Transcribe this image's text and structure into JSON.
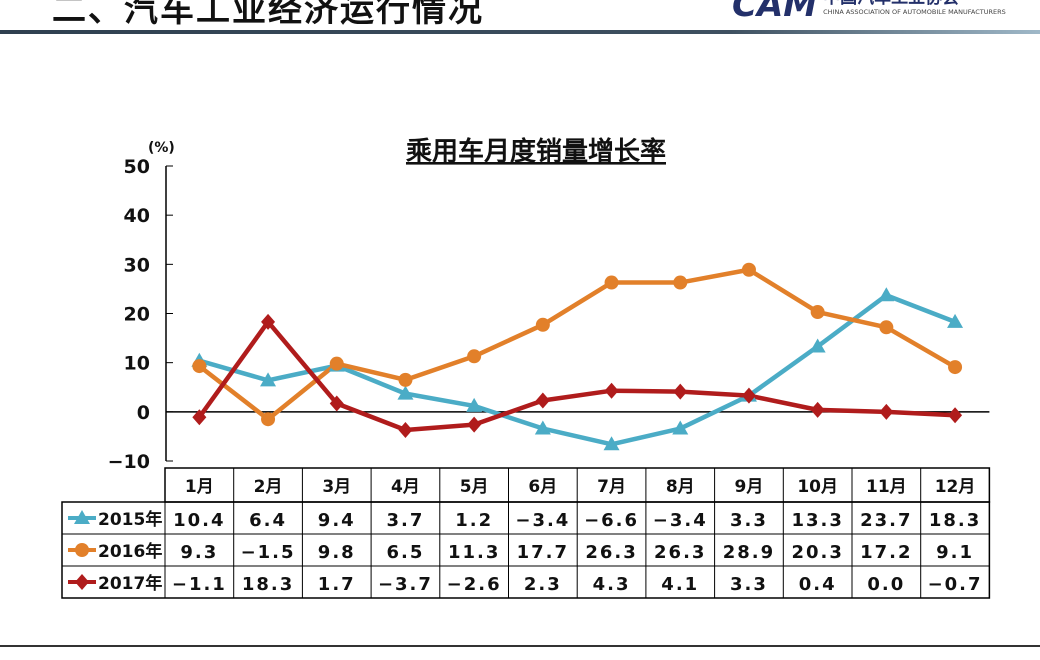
{
  "header": {
    "title": "二、汽车工业经济运行情况",
    "logo_cn": "中国汽车工业协会",
    "logo_en": "CHINA ASSOCIATION OF AUTOMOBILE MANUFACTURERS",
    "logo_mark": "CAM"
  },
  "chart_data": {
    "type": "line",
    "title": "乘用车月度销量增长率",
    "ylabel": "(%)",
    "ylim": [
      -10,
      50
    ],
    "yticks": [
      "50",
      "40",
      "30",
      "20",
      "10",
      "0",
      "−10"
    ],
    "categories": [
      "1月",
      "2月",
      "3月",
      "4月",
      "5月",
      "6月",
      "7月",
      "8月",
      "9月",
      "10月",
      "11月",
      "12月"
    ],
    "legend": "table-rows",
    "series": [
      {
        "name": "2015年",
        "color": "#4bacc6",
        "marker": "triangle",
        "values": [
          10.4,
          6.4,
          9.4,
          3.7,
          1.2,
          -3.4,
          -6.6,
          -3.4,
          3.3,
          13.3,
          23.7,
          18.3
        ],
        "labels": [
          "10.4",
          "6.4",
          "9.4",
          "3.7",
          "1.2",
          "−3.4",
          "−6.6",
          "−3.4",
          "3.3",
          "13.3",
          "23.7",
          "18.3"
        ]
      },
      {
        "name": "2016年",
        "color": "#e2802a",
        "marker": "circle",
        "values": [
          9.3,
          -1.5,
          9.8,
          6.5,
          11.3,
          17.7,
          26.3,
          26.3,
          28.9,
          20.3,
          17.2,
          9.1
        ],
        "labels": [
          "9.3",
          "−1.5",
          "9.8",
          "6.5",
          "11.3",
          "17.7",
          "26.3",
          "26.3",
          "28.9",
          "20.3",
          "17.2",
          "9.1"
        ]
      },
      {
        "name": "2017年",
        "color": "#b01c1c",
        "marker": "diamond",
        "values": [
          -1.1,
          18.3,
          1.7,
          -3.7,
          -2.6,
          2.3,
          4.3,
          4.1,
          3.3,
          0.4,
          0.0,
          -0.7
        ],
        "labels": [
          "−1.1",
          "18.3",
          "1.7",
          "−3.7",
          "−2.6",
          "2.3",
          "4.3",
          "4.1",
          "3.3",
          "0.4",
          "0.0",
          "−0.7"
        ]
      }
    ]
  }
}
